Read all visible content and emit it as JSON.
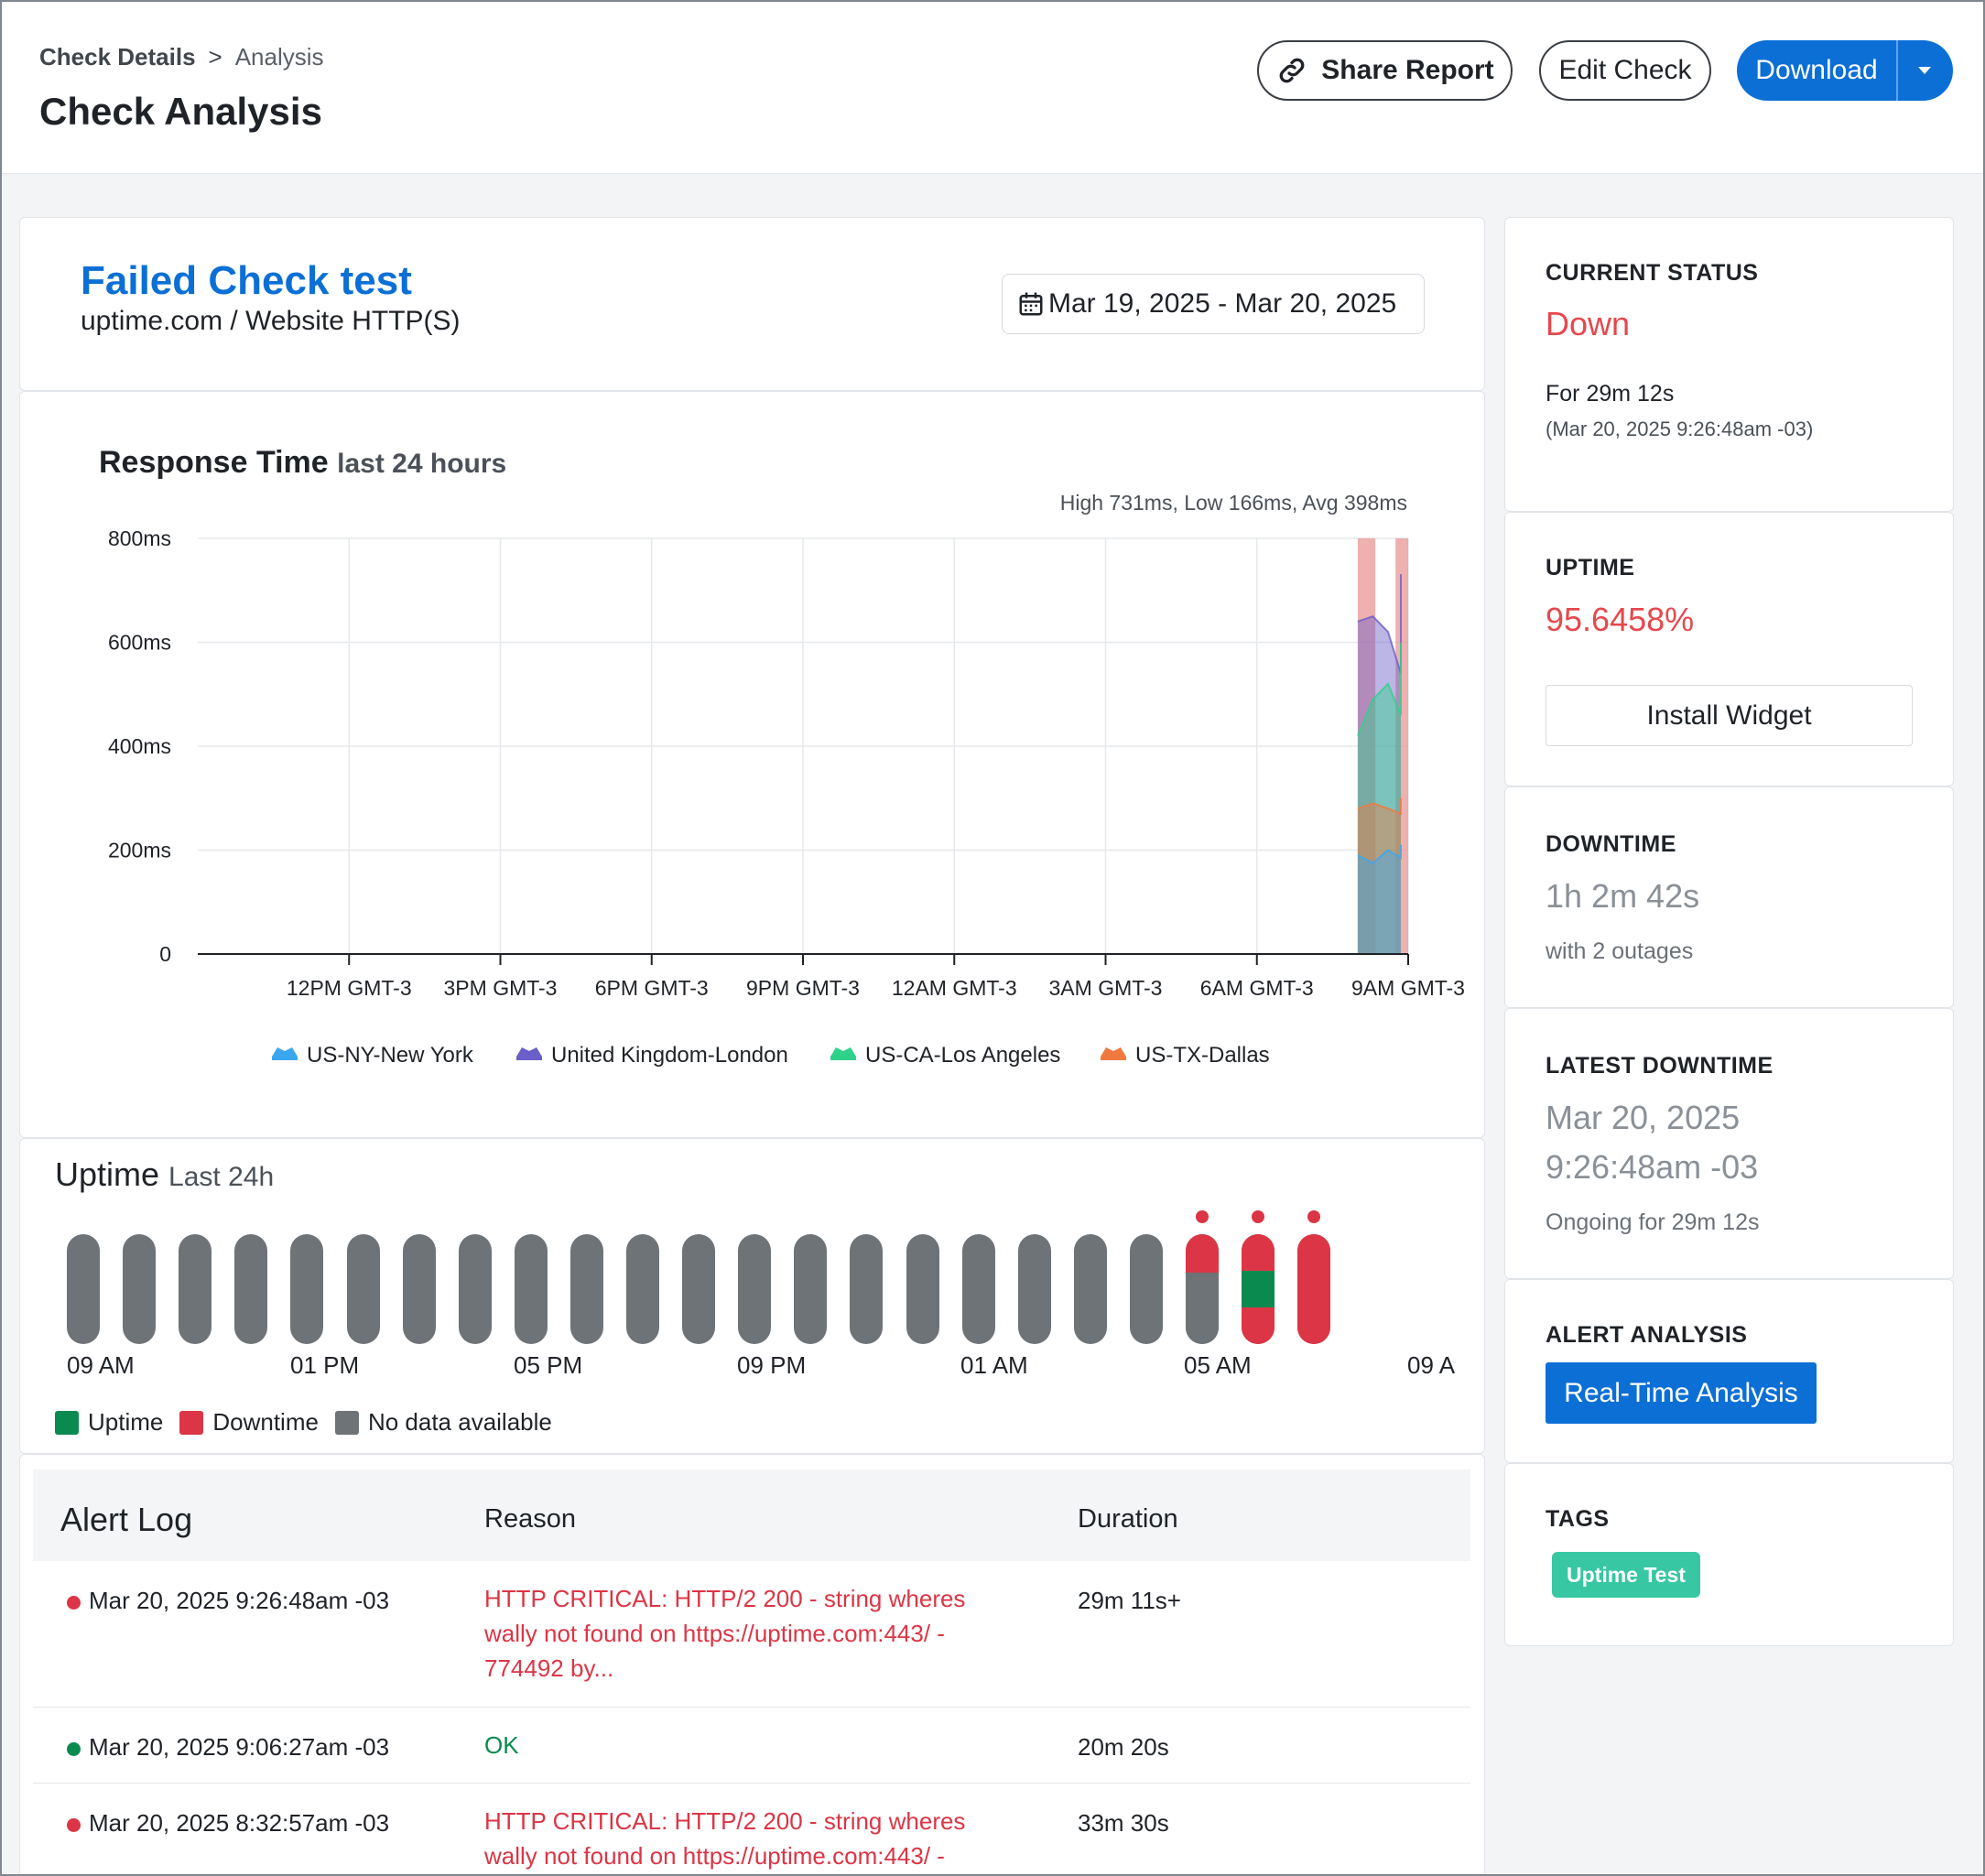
{
  "breadcrumb": {
    "parent": "Check Details",
    "separator": ">",
    "current": "Analysis"
  },
  "page_title": "Check Analysis",
  "toolbar": {
    "share_label": "Share Report",
    "edit_label": "Edit Check",
    "download_label": "Download"
  },
  "check": {
    "name": "Failed Check test",
    "subtitle": "uptime.com / Website HTTP(S)",
    "date_range": "Mar 19, 2025 - Mar 20, 2025"
  },
  "response_chart": {
    "title": "Response Time",
    "subtitle": "last 24 hours",
    "stats": "High 731ms, Low 166ms, Avg 398ms"
  },
  "chart_data": {
    "type": "area",
    "title": "Response Time",
    "subtitle": "last 24 hours",
    "xlabel": "",
    "ylabel": "",
    "y_ticks": [
      "800ms",
      "600ms",
      "400ms",
      "200ms",
      "0"
    ],
    "x_ticks": [
      "12PM GMT-3",
      "3PM GMT-3",
      "6PM GMT-3",
      "9PM GMT-3",
      "12AM GMT-3",
      "3AM GMT-3",
      "6AM GMT-3",
      "9AM GMT-3"
    ],
    "ylim": [
      0,
      800
    ],
    "x_range_hours": [
      0,
      24
    ],
    "grid": true,
    "legend_position": "bottom",
    "stacked": false,
    "x": [
      23.0,
      23.3,
      23.6,
      23.9,
      24.2
    ],
    "series": [
      {
        "name": "US-NY-New York",
        "color": "#3ba7f0",
        "values": [
          190,
          175,
          200,
          185,
          210
        ]
      },
      {
        "name": "United Kingdom-London",
        "color": "#6a5ec9",
        "values": [
          640,
          650,
          620,
          540,
          731
        ]
      },
      {
        "name": "US-CA-Los Angeles",
        "color": "#2ed28a",
        "values": [
          420,
          490,
          520,
          460,
          600
        ]
      },
      {
        "name": "US-TX-Dallas",
        "color": "#f07a3e",
        "values": [
          280,
          290,
          280,
          270,
          300
        ]
      }
    ],
    "downtime_bands": [
      [
        23.0,
        23.35
      ],
      [
        23.75,
        24.2
      ]
    ],
    "downtime_color": "#e8908f"
  },
  "uptime_strip": {
    "title": "Uptime",
    "subtitle": "Last 24h",
    "labels": [
      "09 AM",
      "01 PM",
      "05 PM",
      "09 PM",
      "01 AM",
      "05 AM",
      "09 A"
    ],
    "bars": [
      {
        "up": 0,
        "down": 0
      },
      {
        "up": 0,
        "down": 0
      },
      {
        "up": 0,
        "down": 0
      },
      {
        "up": 0,
        "down": 0
      },
      {
        "up": 0,
        "down": 0
      },
      {
        "up": 0,
        "down": 0
      },
      {
        "up": 0,
        "down": 0
      },
      {
        "up": 0,
        "down": 0
      },
      {
        "up": 0,
        "down": 0
      },
      {
        "up": 0,
        "down": 0
      },
      {
        "up": 0,
        "down": 0
      },
      {
        "up": 0,
        "down": 0
      },
      {
        "up": 0,
        "down": 0
      },
      {
        "up": 0,
        "down": 0
      },
      {
        "up": 0,
        "down": 0
      },
      {
        "up": 0,
        "down": 0
      },
      {
        "up": 0,
        "down": 0
      },
      {
        "up": 0,
        "down": 0
      },
      {
        "up": 0,
        "down": 0
      },
      {
        "up": 0,
        "down": 0
      },
      {
        "up": 0,
        "down": 0.35,
        "alert": true
      },
      {
        "up": 0.33,
        "down": 0.67,
        "alert": true
      },
      {
        "up": 0,
        "down": 1.0,
        "alert": true
      }
    ],
    "legend": {
      "uptime": "Uptime",
      "downtime": "Downtime",
      "nodata": "No data available"
    },
    "colors": {
      "uptime": "#0b8a4f",
      "downtime": "#dc3545",
      "nodata": "#6e7377"
    }
  },
  "alert_log": {
    "headers": {
      "title": "Alert Log",
      "reason": "Reason",
      "duration": "Duration"
    },
    "rows": [
      {
        "time": "Mar 20, 2025 9:26:48am -03",
        "status": "down",
        "reason": "HTTP CRITICAL: HTTP/2 200 - string wheres wally not found on https://uptime.com:443/ - 774492 by...",
        "duration": "29m 11s+"
      },
      {
        "time": "Mar 20, 2025 9:06:27am -03",
        "status": "up",
        "reason": "OK",
        "duration": "20m 20s"
      },
      {
        "time": "Mar 20, 2025 8:32:57am -03",
        "status": "down",
        "reason": "HTTP CRITICAL: HTTP/2 200 - string wheres wally not found on https://uptime.com:443/ -",
        "duration": "33m 30s"
      }
    ]
  },
  "sidebar": {
    "current_status": {
      "label": "CURRENT STATUS",
      "value": "Down",
      "duration": "For 29m 12s",
      "since": "(Mar 20, 2025 9:26:48am -03)"
    },
    "uptime": {
      "label": "UPTIME",
      "value": "95.6458%",
      "widget_label": "Install Widget"
    },
    "downtime": {
      "label": "DOWNTIME",
      "value": "1h 2m 42s",
      "detail": "with 2 outages"
    },
    "latest_downtime": {
      "label": "LATEST DOWNTIME",
      "date": "Mar 20, 2025",
      "time": "9:26:48am -03",
      "detail": "Ongoing for 29m 12s"
    },
    "alert_analysis": {
      "label": "ALERT ANALYSIS",
      "button": "Real-Time Analysis"
    },
    "tags": {
      "label": "TAGS",
      "items": [
        "Uptime Test"
      ]
    }
  },
  "colors": {
    "brand": "#0b6fd6",
    "danger": "#e5484d",
    "success": "#0b8a4f",
    "muted": "#8a9097"
  }
}
